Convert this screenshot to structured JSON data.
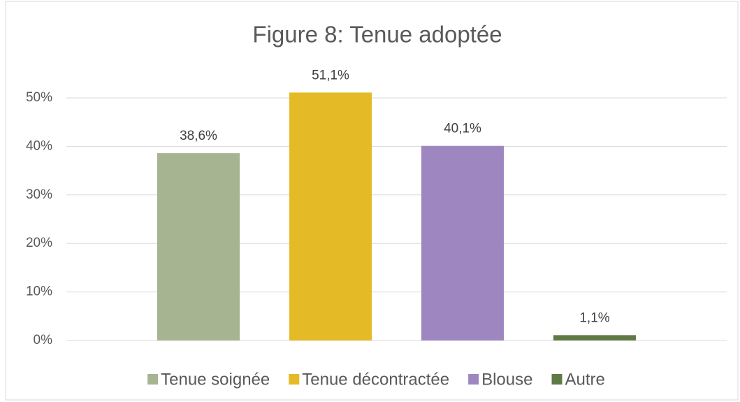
{
  "chart_data": {
    "type": "bar",
    "title": "Figure 8: Tenue adoptée",
    "categories": [
      null
    ],
    "series": [
      {
        "name": "Tenue soignée",
        "color": "#a6b491",
        "values": [
          38.6
        ],
        "value_labels": [
          "38,6%"
        ]
      },
      {
        "name": "Tenue décontractée",
        "color": "#e4bb27",
        "values": [
          51.1
        ],
        "value_labels": [
          "51,1%"
        ]
      },
      {
        "name": "Blouse",
        "color": "#9e87c1",
        "values": [
          40.1
        ],
        "value_labels": [
          "40,1%"
        ]
      },
      {
        "name": "Autre",
        "color": "#5f7a45",
        "values": [
          1.1
        ],
        "value_labels": [
          "1,1%"
        ]
      }
    ],
    "ylim": [
      0,
      50
    ],
    "yticks": [
      {
        "value": 0,
        "label": "0%"
      },
      {
        "value": 10,
        "label": "10%"
      },
      {
        "value": 20,
        "label": "20%"
      },
      {
        "value": 30,
        "label": "30%"
      },
      {
        "value": 40,
        "label": "40%"
      },
      {
        "value": 50,
        "label": "50%"
      }
    ],
    "grid": true,
    "legend": "bottom"
  }
}
